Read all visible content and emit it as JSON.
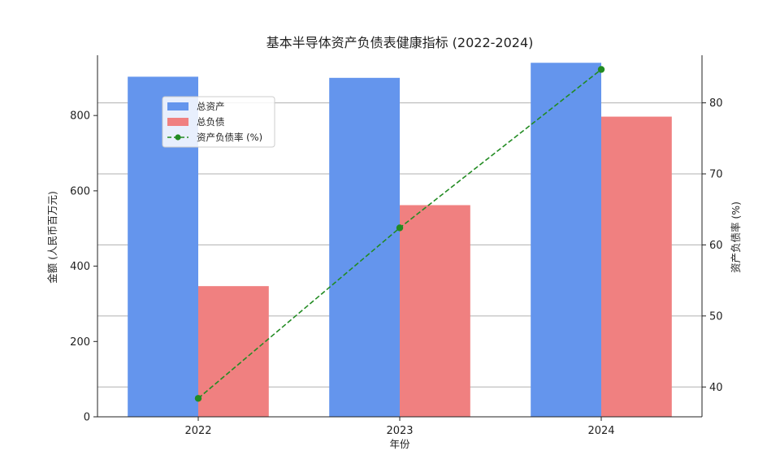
{
  "chart_data": {
    "type": "bar",
    "title": "基本半导体资产负债表健康指标 (2022-2024)",
    "xlabel": "年份",
    "ylabel": "金额 (人民币百万元)",
    "y2label": "资产负债率 (%)",
    "categories": [
      "2022",
      "2023",
      "2024"
    ],
    "series": [
      {
        "name": "总资产",
        "kind": "bar",
        "axis": "left",
        "color": "#6495ED",
        "values": [
          903,
          900,
          940
        ]
      },
      {
        "name": "总负债",
        "kind": "bar",
        "axis": "left",
        "color": "#F08080",
        "values": [
          347,
          562,
          797
        ]
      },
      {
        "name": "资产负债率 (%)",
        "kind": "line",
        "axis": "right",
        "color": "#228B22",
        "values": [
          38.4,
          62.4,
          84.7
        ]
      }
    ],
    "ylim": [
      0,
      960
    ],
    "yticks": [
      0,
      200,
      400,
      600,
      800
    ],
    "y2lim": [
      35.8,
      86.7
    ],
    "y2ticks": [
      40,
      50,
      60,
      70,
      80
    ],
    "grid": "right-axis horizontal",
    "legend": "top-left"
  }
}
